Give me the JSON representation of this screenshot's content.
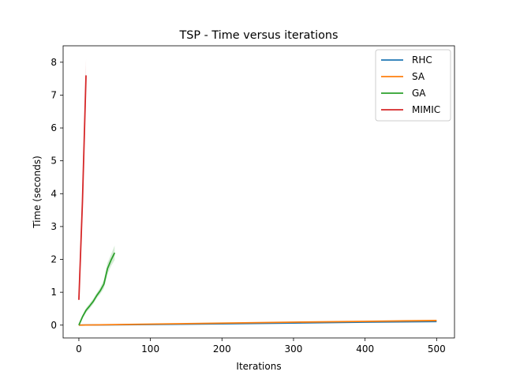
{
  "chart_data": {
    "type": "line",
    "title": "TSP - Time versus iterations",
    "xlabel": "Iterations",
    "ylabel": "Time (seconds)",
    "xlim": [
      -22,
      525
    ],
    "ylim": [
      -0.39,
      8.5
    ],
    "xticks": [
      0,
      100,
      200,
      300,
      400,
      500
    ],
    "yticks": [
      0,
      1,
      2,
      3,
      4,
      5,
      6,
      7,
      8
    ],
    "grid": false,
    "legend_position": "top-right",
    "series": [
      {
        "name": "RHC",
        "color": "#1f77b4",
        "x": [
          0,
          10,
          50,
          100,
          200,
          300,
          400,
          500
        ],
        "y": [
          0.0,
          0.003,
          0.01,
          0.02,
          0.04,
          0.065,
          0.09,
          0.11
        ]
      },
      {
        "name": "SA",
        "color": "#ff7f0e",
        "x": [
          0,
          10,
          50,
          100,
          200,
          300,
          400,
          500
        ],
        "y": [
          0.0,
          0.004,
          0.015,
          0.03,
          0.06,
          0.09,
          0.115,
          0.14
        ]
      },
      {
        "name": "GA",
        "color": "#2ca02c",
        "x": [
          0,
          5,
          10,
          15,
          20,
          25,
          30,
          35,
          40,
          45,
          50
        ],
        "y": [
          0.0,
          0.25,
          0.45,
          0.58,
          0.72,
          0.9,
          1.05,
          1.25,
          1.72,
          1.98,
          2.2
        ],
        "band_upper": [
          0.02,
          0.3,
          0.52,
          0.66,
          0.8,
          0.98,
          1.15,
          1.38,
          1.9,
          2.15,
          2.42
        ],
        "band_lower": [
          0.0,
          0.2,
          0.38,
          0.5,
          0.64,
          0.82,
          0.95,
          1.12,
          1.55,
          1.8,
          1.98
        ]
      },
      {
        "name": "MIMIC",
        "color": "#d62728",
        "x": [
          0,
          5,
          10
        ],
        "y": [
          0.77,
          3.75,
          7.6
        ],
        "band_upper": [
          0.82,
          4.0,
          8.1
        ],
        "band_lower": [
          0.72,
          3.5,
          7.1
        ]
      }
    ]
  }
}
